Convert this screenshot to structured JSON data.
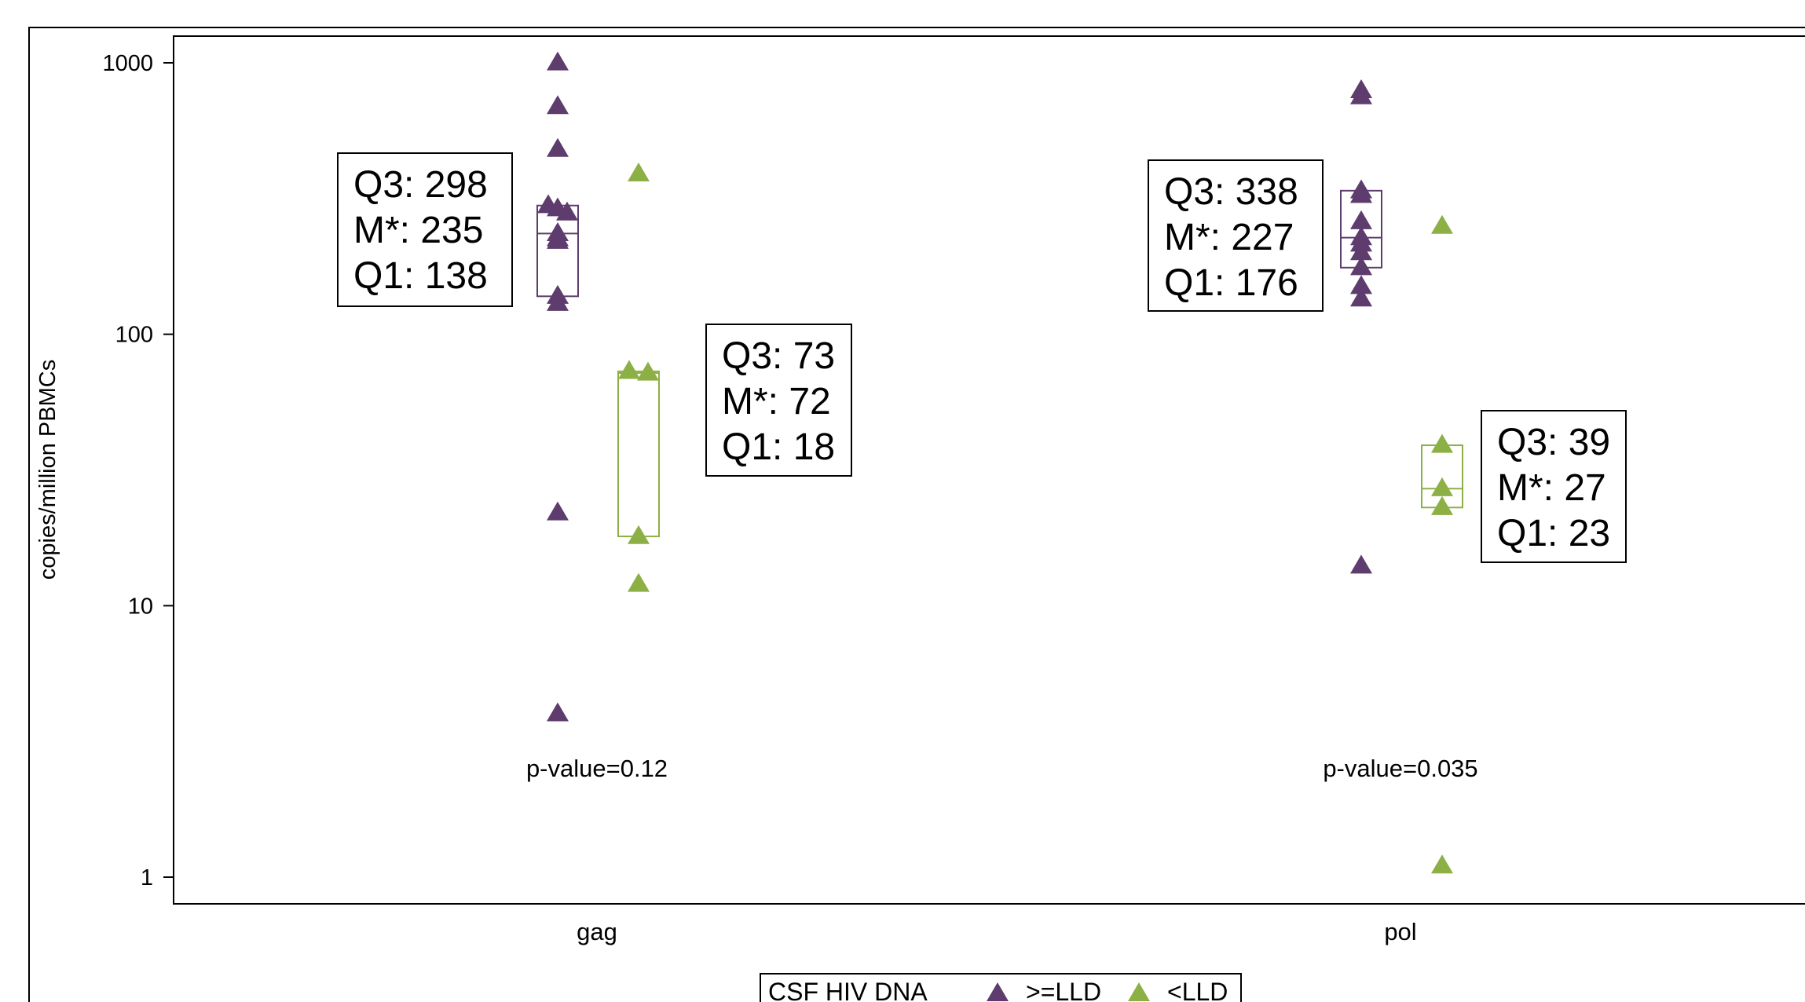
{
  "chart_data": {
    "type": "scatter",
    "title": "",
    "xlabel": "",
    "ylabel": "copies/million PBMCs",
    "yscale": "log",
    "ylim": [
      1,
      1000
    ],
    "yticks": [
      "1",
      "10",
      "100",
      "1000"
    ],
    "categories": [
      "gag",
      "pol"
    ],
    "series": [
      {
        "name": ">=LLD",
        "color": "#5e3c6e",
        "marker": "triangle",
        "values": [
          [
            1000,
            690,
            480,
            298,
            290,
            280,
            235,
            225,
            220,
            138,
            130,
            22,
            4
          ],
          [
            790,
            750,
            338,
            325,
            260,
            227,
            215,
            200,
            176,
            150,
            135,
            14
          ]
        ]
      },
      {
        "name": "<LLD",
        "color": "#8db046",
        "marker": "triangle",
        "values": [
          [
            390,
            73,
            72,
            18,
            12
          ],
          [
            250,
            39,
            27,
            23,
            1.1
          ]
        ]
      }
    ],
    "boxes": [
      {
        "category": "gag",
        "series": ">=LLD",
        "q3": 298,
        "median": 235,
        "q1": 138,
        "labels": [
          "Q3: 298",
          "M*: 235",
          "Q1: 138"
        ]
      },
      {
        "category": "gag",
        "series": "<LLD",
        "q3": 73,
        "median": 72,
        "q1": 18,
        "labels": [
          "Q3: 73",
          "M*: 72",
          "Q1: 18"
        ]
      },
      {
        "category": "pol",
        "series": ">=LLD",
        "q3": 338,
        "median": 227,
        "q1": 176,
        "labels": [
          "Q3: 338",
          "M*: 227",
          "Q1: 176"
        ]
      },
      {
        "category": "pol",
        "series": "<LLD",
        "q3": 39,
        "median": 27,
        "q1": 23,
        "labels": [
          "Q3: 39",
          "M*: 27",
          "Q1: 23"
        ]
      }
    ],
    "pvalues": [
      "p-value=0.12",
      "p-value=0.035"
    ],
    "legend": {
      "title": "CSF HIV DNA",
      "entries": [
        ">=LLD",
        "<LLD"
      ],
      "placement": "bottom"
    }
  }
}
